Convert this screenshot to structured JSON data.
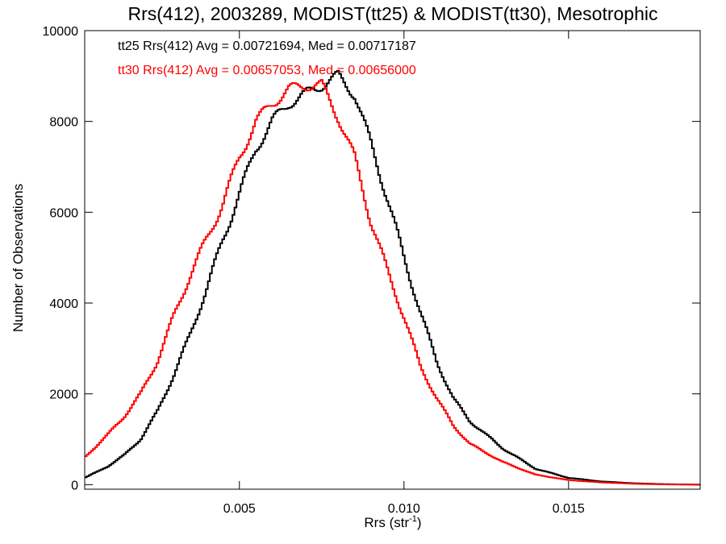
{
  "chart_data": {
    "type": "line",
    "title": "Rrs(412), 2003289, MODIST(tt25) & MODIST(tt30), Mesotrophic",
    "xlabel": "Rrs (str",
    "xlabel_sup": "-1",
    "xlabel_suffix": ")",
    "ylabel": "Number of Observations",
    "xlim": [
      0.0003,
      0.019
    ],
    "ylim": [
      -100,
      10000
    ],
    "x_ticks": [
      0.005,
      0.01,
      0.015
    ],
    "x_tick_labels": [
      "0.005",
      "0.010",
      "0.015"
    ],
    "y_ticks": [
      0,
      2000,
      4000,
      6000,
      8000,
      10000
    ],
    "y_tick_labels": [
      "0",
      "2000",
      "4000",
      "6000",
      "8000",
      "10000"
    ],
    "grid": false,
    "legend_position": "top-left",
    "series": [
      {
        "name": "tt25",
        "color": "#000000",
        "legend": "tt25 Rrs(412) Avg = 0.00721694, Med = 0.00717187",
        "x": [
          0.0003,
          0.001,
          0.0015,
          0.002,
          0.0025,
          0.003,
          0.0035,
          0.004,
          0.0045,
          0.005,
          0.0055,
          0.006,
          0.0065,
          0.007,
          0.0075,
          0.008,
          0.0085,
          0.009,
          0.0095,
          0.01,
          0.0105,
          0.011,
          0.0115,
          0.012,
          0.013,
          0.014,
          0.015,
          0.016,
          0.017,
          0.018,
          0.019
        ],
        "y": [
          150,
          400,
          650,
          1000,
          1600,
          2400,
          3300,
          4300,
          5400,
          6400,
          7400,
          8000,
          8400,
          8600,
          8800,
          9000,
          8600,
          7500,
          6300,
          5000,
          3800,
          2700,
          1900,
          1400,
          800,
          350,
          150,
          70,
          30,
          10,
          0
        ]
      },
      {
        "name": "tt30",
        "color": "#ff0000",
        "legend": "tt30 Rrs(412) Avg = 0.00657053, Med = 0.00656000",
        "x": [
          0.0003,
          0.001,
          0.0015,
          0.002,
          0.0025,
          0.003,
          0.0035,
          0.004,
          0.0045,
          0.005,
          0.0055,
          0.006,
          0.0065,
          0.007,
          0.0075,
          0.008,
          0.0085,
          0.009,
          0.0095,
          0.01,
          0.0105,
          0.011,
          0.0115,
          0.012,
          0.013,
          0.014,
          0.015,
          0.016,
          0.017,
          0.018,
          0.019
        ],
        "y": [
          600,
          1100,
          1500,
          2000,
          2700,
          3700,
          4600,
          5400,
          6200,
          7200,
          8000,
          8400,
          8700,
          8800,
          8800,
          8100,
          7200,
          5800,
          4700,
          3700,
          2600,
          1900,
          1300,
          900,
          500,
          220,
          100,
          50,
          20,
          5,
          0
        ]
      }
    ]
  }
}
